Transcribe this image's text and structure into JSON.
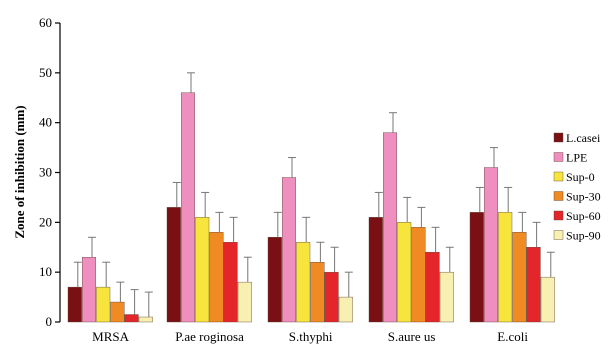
{
  "chart_data": {
    "type": "bar",
    "ylabel": "Zone of inhibition (mm)",
    "xlabel": "",
    "ylim": [
      0,
      60
    ],
    "yticks": [
      0,
      10,
      20,
      30,
      40,
      50,
      60
    ],
    "categories": [
      "MRSA",
      "P.ae roginosa",
      "S.thyphi",
      "S.aure us",
      "E.coli"
    ],
    "legend_position": "right",
    "error_bars": true,
    "series": [
      {
        "name": "L.casei",
        "color": "#7a1014",
        "values": [
          7,
          23,
          17,
          21,
          22
        ],
        "errors": [
          5,
          5,
          5,
          5,
          5
        ]
      },
      {
        "name": "LPE",
        "color": "#ee8fbf",
        "values": [
          13,
          46,
          29,
          38,
          31
        ],
        "errors": [
          4,
          4,
          4,
          4,
          4
        ]
      },
      {
        "name": "Sup-0",
        "color": "#f7e53e",
        "values": [
          7,
          21,
          16,
          20,
          22
        ],
        "errors": [
          5,
          5,
          5,
          5,
          5
        ]
      },
      {
        "name": "Sup-30",
        "color": "#f08a22",
        "values": [
          4,
          18,
          12,
          19,
          18
        ],
        "errors": [
          4,
          4,
          4,
          4,
          4
        ]
      },
      {
        "name": "Sup-60",
        "color": "#e4262b",
        "values": [
          1.5,
          16,
          10,
          14,
          15
        ],
        "errors": [
          5,
          5,
          5,
          5,
          5
        ]
      },
      {
        "name": "Sup-90",
        "color": "#f7f0b0",
        "values": [
          1,
          8,
          5,
          10,
          9
        ],
        "errors": [
          5,
          5,
          5,
          5,
          5
        ]
      }
    ]
  }
}
